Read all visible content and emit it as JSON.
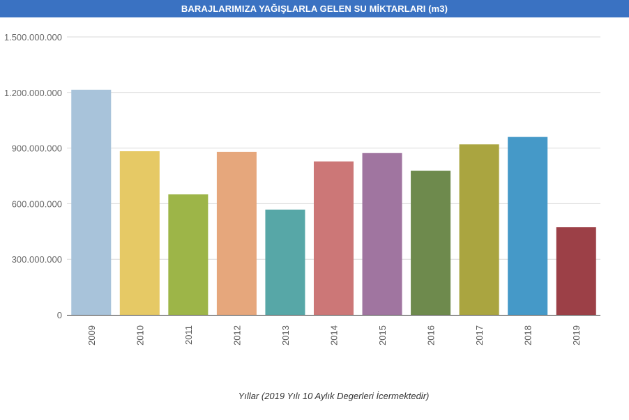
{
  "chart_data": {
    "type": "bar",
    "title": "BARAJLARIMIZA YAĞIŞLARLA GELEN SU MİKTARLARI (m3)",
    "xlabel": "Yıllar (2019 Yılı 10 Aylık Degerleri İcermektedir)",
    "ylabel": "",
    "categories": [
      "2009",
      "2010",
      "2011",
      "2012",
      "2013",
      "2014",
      "2015",
      "2016",
      "2017",
      "2018",
      "2019"
    ],
    "values": [
      1215000000,
      883000000,
      650000000,
      880000000,
      568000000,
      828000000,
      873000000,
      778000000,
      920000000,
      960000000,
      473000000
    ],
    "colors": [
      "#a8c3da",
      "#e6c965",
      "#9db548",
      "#e6a77c",
      "#57a7a7",
      "#cc7777",
      "#a075a0",
      "#6e8a4d",
      "#aaa540",
      "#4599c8",
      "#9c4047"
    ],
    "yticks": [
      0,
      300000000,
      600000000,
      900000000,
      1200000000,
      1500000000
    ],
    "ytick_labels": [
      "0",
      "300.000.000",
      "600.000.000",
      "900.000.000",
      "1.200.000.000",
      "1.500.000.000"
    ],
    "ylim": [
      0,
      1500000000
    ],
    "grid": true,
    "legend": "none"
  }
}
